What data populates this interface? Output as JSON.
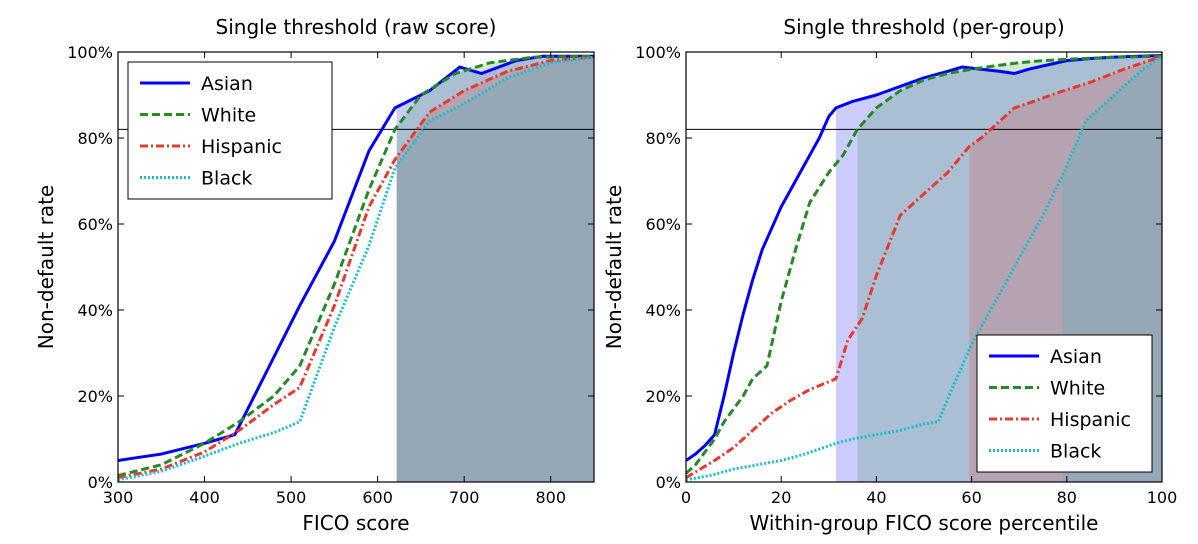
{
  "chart_data": [
    {
      "type": "line",
      "title": "Single threshold (raw score)",
      "xlabel": "FICO score",
      "ylabel": "Non-default rate",
      "xlim": [
        300,
        850
      ],
      "ylim": [
        0,
        100
      ],
      "xticks": [
        300,
        400,
        500,
        600,
        700,
        800
      ],
      "yticks": [
        0,
        20,
        40,
        60,
        80,
        100
      ],
      "ytick_labels": [
        "0%",
        "20%",
        "40%",
        "60%",
        "80%",
        "100%"
      ],
      "threshold_line_y": 82,
      "legend_position": "top-left",
      "shaded_x_start": 622,
      "series": [
        {
          "name": "Asian",
          "color": "#0000ff",
          "style": "solid",
          "x": [
            300,
            350,
            400,
            435,
            470,
            510,
            550,
            590,
            620,
            660,
            695,
            720,
            760,
            790,
            850
          ],
          "y": [
            5,
            6.5,
            9,
            11,
            25,
            41,
            56,
            77,
            87,
            91,
            96.5,
            95,
            98,
            99,
            99
          ]
        },
        {
          "name": "White",
          "color": "#228b22",
          "style": "dashed",
          "x": [
            300,
            350,
            400,
            440,
            480,
            510,
            550,
            590,
            620,
            650,
            690,
            730,
            780,
            850
          ],
          "y": [
            1.5,
            4,
            9,
            14,
            20,
            27,
            46,
            68,
            82,
            90,
            95,
            97.5,
            98.8,
            99
          ]
        },
        {
          "name": "Hispanic",
          "color": "#e8392d",
          "style": "dashdot",
          "x": [
            300,
            350,
            400,
            440,
            480,
            510,
            550,
            590,
            620,
            660,
            700,
            750,
            800,
            850
          ],
          "y": [
            1,
            3,
            7,
            12,
            18,
            22,
            41,
            64,
            75,
            86,
            91,
            95.5,
            98,
            98.8
          ]
        },
        {
          "name": "Black",
          "color": "#17becf",
          "style": "dotted",
          "x": [
            300,
            350,
            400,
            440,
            480,
            510,
            550,
            590,
            620,
            660,
            700,
            750,
            800,
            850
          ],
          "y": [
            0.5,
            2.5,
            6,
            9,
            11.5,
            14,
            36,
            55,
            73,
            84,
            88,
            94,
            97.5,
            98.8
          ]
        }
      ]
    },
    {
      "type": "line",
      "title": "Single threshold (per-group)",
      "xlabel": "Within-group FICO score percentile",
      "ylabel": "Non-default rate",
      "xlim": [
        0,
        100
      ],
      "ylim": [
        0,
        100
      ],
      "xticks": [
        0,
        20,
        40,
        60,
        80,
        100
      ],
      "yticks": [
        0,
        20,
        40,
        60,
        80,
        100
      ],
      "ytick_labels": [
        "0%",
        "20%",
        "40%",
        "60%",
        "80%",
        "100%"
      ],
      "threshold_line_y": 82,
      "legend_position": "bottom-right",
      "shaded_regions": [
        {
          "group": "Asian",
          "x_start": 31.5,
          "color": "#0000ff"
        },
        {
          "group": "White",
          "x_start": 36,
          "color": "#228b22"
        },
        {
          "group": "Hispanic",
          "x_start": 59.5,
          "color": "#e8392d"
        },
        {
          "group": "Black",
          "x_start": 79,
          "color": "#17becf"
        }
      ],
      "series": [
        {
          "name": "Asian",
          "color": "#0000ff",
          "style": "solid",
          "x": [
            0,
            2,
            4,
            6,
            8,
            10,
            12,
            14,
            16,
            18,
            20,
            22,
            24,
            26,
            28,
            30,
            31.5,
            35,
            40,
            45,
            50,
            55,
            58,
            62,
            66,
            69,
            72,
            76,
            80,
            85,
            90,
            95,
            100
          ],
          "y": [
            5,
            6.5,
            8.5,
            11,
            20,
            30,
            39,
            47,
            54,
            59,
            64,
            68,
            72,
            76,
            80,
            85,
            87,
            88.5,
            90,
            92,
            94,
            95.5,
            96.5,
            96,
            95.5,
            95,
            96,
            97,
            98,
            98.5,
            98.8,
            99,
            99.2
          ]
        },
        {
          "name": "White",
          "color": "#228b22",
          "style": "dashed",
          "x": [
            0,
            2,
            4,
            6,
            8,
            10,
            12,
            14,
            16,
            17,
            20,
            23,
            26,
            30,
            33,
            36,
            40,
            45,
            50,
            55,
            60,
            65,
            70,
            75,
            80,
            90,
            100
          ],
          "y": [
            2,
            4,
            7,
            10,
            14,
            17,
            20,
            24,
            26,
            27,
            42,
            54,
            65,
            72,
            76,
            82,
            87,
            91,
            93.5,
            95,
            96,
            96.8,
            97.5,
            98,
            98.3,
            98.8,
            99
          ]
        },
        {
          "name": "Hispanic",
          "color": "#e8392d",
          "style": "dashdot",
          "x": [
            0,
            3,
            6,
            10,
            14,
            18,
            22,
            26,
            31.5,
            34,
            37,
            40,
            45,
            50,
            55,
            59.5,
            62,
            65,
            69,
            73,
            78,
            85,
            92,
            100
          ],
          "y": [
            1,
            3,
            5,
            8,
            12,
            16,
            19,
            21.5,
            24,
            33,
            38,
            48,
            62,
            67,
            72,
            78,
            80,
            83,
            87,
            88.5,
            90.5,
            93,
            96,
            99
          ]
        },
        {
          "name": "Black",
          "color": "#17becf",
          "style": "dotted",
          "x": [
            0,
            5,
            10,
            15,
            20,
            25,
            31.5,
            35,
            40,
            45,
            50,
            53,
            56,
            60,
            65,
            70,
            75,
            79,
            84,
            88,
            92,
            96,
            100
          ],
          "y": [
            0.5,
            1.5,
            3,
            4,
            5,
            6.5,
            9,
            10,
            11,
            12,
            13.5,
            14,
            22,
            32,
            42,
            52,
            62,
            71,
            84,
            88,
            92,
            96,
            98.8
          ]
        }
      ]
    }
  ]
}
